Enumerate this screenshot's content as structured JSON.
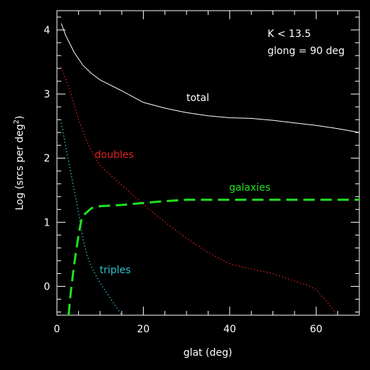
{
  "chart_data": {
    "type": "line",
    "xlabel": "glat (deg)",
    "ylabel": "Log (srcs per deg",
    "ylabel_sup": "2",
    "ylabel_close": ")",
    "xlim": [
      0,
      70
    ],
    "ylim": [
      -0.45,
      4.3
    ],
    "x_ticks": [
      0,
      20,
      40,
      60
    ],
    "y_ticks": [
      0,
      1,
      2,
      3,
      4
    ],
    "grid": false,
    "annotations": [
      "K < 13.5",
      "glong = 90 deg"
    ],
    "series": [
      {
        "name": "total",
        "color": "#ffffff",
        "dash": "solid",
        "x": [
          1,
          2,
          4,
          6,
          8,
          10,
          15,
          20,
          25,
          30,
          35,
          40,
          45,
          50,
          55,
          60,
          65,
          70
        ],
        "y": [
          4.1,
          3.92,
          3.65,
          3.45,
          3.32,
          3.22,
          3.05,
          2.87,
          2.78,
          2.71,
          2.66,
          2.63,
          2.62,
          2.59,
          2.55,
          2.51,
          2.46,
          2.4
        ]
      },
      {
        "name": "doubles",
        "color": "#e02020",
        "dash": "dotted",
        "x": [
          1,
          3,
          5,
          7,
          9,
          10,
          15,
          20,
          25,
          30,
          35,
          40,
          45,
          50,
          55,
          58,
          60,
          62,
          65
        ],
        "y": [
          3.42,
          3.05,
          2.6,
          2.25,
          1.98,
          1.88,
          1.58,
          1.28,
          1.0,
          0.75,
          0.53,
          0.35,
          0.27,
          0.2,
          0.08,
          0.02,
          -0.05,
          -0.2,
          -0.45
        ]
      },
      {
        "name": "triples",
        "color": "#30c0d0",
        "dash": "dotted",
        "x": [
          1,
          2,
          3,
          4,
          5,
          6,
          7,
          8,
          10,
          12,
          15
        ],
        "y": [
          2.55,
          2.2,
          1.85,
          1.5,
          1.15,
          0.75,
          0.48,
          0.3,
          0.05,
          -0.15,
          -0.45
        ]
      },
      {
        "name": "galaxies",
        "color": "#20e020",
        "dash": "dashed",
        "x": [
          2.7,
          3.2,
          4,
          5,
          5.7,
          6,
          8,
          10,
          15,
          20,
          25,
          30,
          40,
          50,
          60,
          70
        ],
        "y": [
          -0.45,
          -0.1,
          0.35,
          0.8,
          1.05,
          1.1,
          1.22,
          1.25,
          1.27,
          1.3,
          1.33,
          1.35,
          1.35,
          1.35,
          1.35,
          1.35
        ]
      }
    ]
  }
}
